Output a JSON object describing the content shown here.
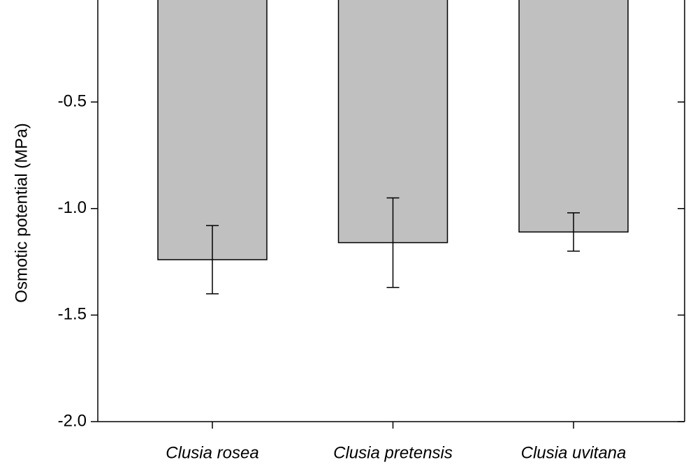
{
  "chart_data": {
    "type": "bar",
    "ylabel": "Osmotic potential (MPa)",
    "categories": [
      "Clusia rosea",
      "Clusia pretensis",
      "Clusia uvitana"
    ],
    "values": [
      -1.24,
      -1.16,
      -1.11
    ],
    "errors": [
      0.16,
      0.21,
      0.09
    ],
    "color": "#c0c0c0",
    "ylim": [
      -2.0,
      0
    ],
    "yticks": [
      {
        "value": -2.0,
        "label": "-2.0"
      },
      {
        "value": -1.5,
        "label": "-1.5"
      },
      {
        "value": -1.0,
        "label": "-1.0"
      },
      {
        "value": -0.5,
        "label": "-0.5"
      }
    ],
    "grid": false
  }
}
